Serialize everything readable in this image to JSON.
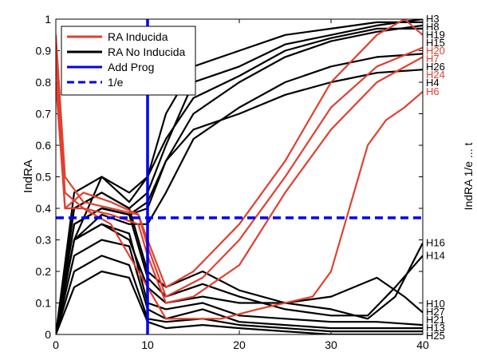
{
  "chart_data": {
    "type": "line",
    "title": "",
    "xlabel": "",
    "ylabel": "IndRA",
    "xlim": [
      0,
      40
    ],
    "ylim": [
      0,
      1
    ],
    "xticks": [
      0,
      10,
      20,
      30,
      40
    ],
    "yticks": [
      0,
      0.1,
      0.2,
      0.3,
      0.4,
      0.5,
      0.6,
      0.7,
      0.8,
      0.9,
      1
    ],
    "grid": false,
    "legend_position": "top-left",
    "colors": {
      "induced": "#e04030",
      "not_induced": "#000000",
      "prog": "#0000ee"
    },
    "legend": [
      {
        "label": "RA Inducida",
        "color": "#e04030",
        "style": "solid"
      },
      {
        "label": "RA No Inducida",
        "color": "#000000",
        "style": "solid"
      },
      {
        "label": "Add Prog",
        "color": "#0000ee",
        "style": "solid"
      },
      {
        "label": "1/e",
        "color": "#0000ee",
        "style": "dashed"
      }
    ],
    "reference_lines": [
      {
        "kind": "vertical",
        "x": 10,
        "color": "#0000ee",
        "style": "solid"
      },
      {
        "kind": "horizontal",
        "y": 0.37,
        "x_range": [
          0,
          40
        ],
        "color": "#0000ee",
        "style": "dashed"
      }
    ],
    "clipped_right_label": "IndRA 1/e ... t",
    "series": [
      {
        "name": "H3",
        "group": "not_induced",
        "points": [
          [
            0,
            0
          ],
          [
            2,
            0.4
          ],
          [
            5,
            0.45
          ],
          [
            8,
            0.4
          ],
          [
            10,
            0.45
          ],
          [
            12,
            0.6
          ],
          [
            15,
            0.8
          ],
          [
            20,
            0.85
          ],
          [
            25,
            0.92
          ],
          [
            30,
            0.95
          ],
          [
            35,
            0.98
          ],
          [
            40,
            1.0
          ]
        ]
      },
      {
        "name": "H8",
        "group": "not_induced",
        "points": [
          [
            0,
            0
          ],
          [
            2,
            0.45
          ],
          [
            5,
            0.5
          ],
          [
            8,
            0.42
          ],
          [
            10,
            0.5
          ],
          [
            12,
            0.7
          ],
          [
            15,
            0.85
          ],
          [
            20,
            0.9
          ],
          [
            25,
            0.95
          ],
          [
            30,
            0.97
          ],
          [
            35,
            0.99
          ],
          [
            40,
            0.99
          ]
        ]
      },
      {
        "name": "H19",
        "group": "not_induced",
        "points": [
          [
            0,
            0
          ],
          [
            2,
            0.35
          ],
          [
            5,
            0.4
          ],
          [
            8,
            0.38
          ],
          [
            10,
            0.42
          ],
          [
            12,
            0.55
          ],
          [
            15,
            0.7
          ],
          [
            20,
            0.8
          ],
          [
            25,
            0.88
          ],
          [
            30,
            0.93
          ],
          [
            35,
            0.96
          ],
          [
            40,
            0.98
          ]
        ]
      },
      {
        "name": "H15",
        "group": "not_induced",
        "points": [
          [
            0,
            0
          ],
          [
            2,
            0.3
          ],
          [
            5,
            0.5
          ],
          [
            8,
            0.45
          ],
          [
            10,
            0.5
          ],
          [
            12,
            0.62
          ],
          [
            15,
            0.75
          ],
          [
            20,
            0.82
          ],
          [
            25,
            0.9
          ],
          [
            30,
            0.94
          ],
          [
            35,
            0.97
          ],
          [
            40,
            0.97
          ]
        ]
      },
      {
        "name": "H20",
        "group": "induced",
        "points": [
          [
            0,
            0.95
          ],
          [
            1,
            0.5
          ],
          [
            3,
            0.42
          ],
          [
            6,
            0.4
          ],
          [
            9,
            0.38
          ],
          [
            10,
            0.3
          ],
          [
            12,
            0.15
          ],
          [
            15,
            0.2
          ],
          [
            20,
            0.35
          ],
          [
            25,
            0.55
          ],
          [
            30,
            0.8
          ],
          [
            35,
            0.95
          ],
          [
            38,
            1.0
          ],
          [
            40,
            0.95
          ]
        ]
      },
      {
        "name": "H7",
        "group": "induced",
        "points": [
          [
            0,
            0.88
          ],
          [
            1,
            0.4
          ],
          [
            3,
            0.45
          ],
          [
            6,
            0.42
          ],
          [
            9,
            0.38
          ],
          [
            10,
            0.28
          ],
          [
            12,
            0.12
          ],
          [
            16,
            0.18
          ],
          [
            20,
            0.3
          ],
          [
            25,
            0.5
          ],
          [
            30,
            0.72
          ],
          [
            35,
            0.85
          ],
          [
            40,
            0.91
          ]
        ]
      },
      {
        "name": "H26",
        "group": "not_induced",
        "points": [
          [
            0,
            0
          ],
          [
            2,
            0.3
          ],
          [
            5,
            0.38
          ],
          [
            8,
            0.35
          ],
          [
            10,
            0.35
          ],
          [
            12,
            0.45
          ],
          [
            15,
            0.62
          ],
          [
            20,
            0.72
          ],
          [
            25,
            0.8
          ],
          [
            30,
            0.85
          ],
          [
            35,
            0.88
          ],
          [
            40,
            0.89
          ]
        ]
      },
      {
        "name": "H24",
        "group": "induced",
        "points": [
          [
            0,
            0.8
          ],
          [
            1,
            0.4
          ],
          [
            3,
            0.4
          ],
          [
            6,
            0.38
          ],
          [
            9,
            0.35
          ],
          [
            10,
            0.25
          ],
          [
            12,
            0.1
          ],
          [
            15,
            0.12
          ],
          [
            20,
            0.22
          ],
          [
            25,
            0.45
          ],
          [
            30,
            0.65
          ],
          [
            35,
            0.8
          ],
          [
            40,
            0.88
          ]
        ]
      },
      {
        "name": "H4",
        "group": "not_induced",
        "points": [
          [
            0,
            0
          ],
          [
            2,
            0.35
          ],
          [
            5,
            0.4
          ],
          [
            8,
            0.38
          ],
          [
            10,
            0.4
          ],
          [
            12,
            0.55
          ],
          [
            15,
            0.65
          ],
          [
            20,
            0.7
          ],
          [
            25,
            0.76
          ],
          [
            30,
            0.8
          ],
          [
            35,
            0.83
          ],
          [
            40,
            0.84
          ]
        ]
      },
      {
        "name": "H6",
        "group": "induced",
        "points": [
          [
            0,
            0.9
          ],
          [
            1,
            0.45
          ],
          [
            3,
            0.4
          ],
          [
            6,
            0.35
          ],
          [
            9,
            0.2
          ],
          [
            10,
            0.15
          ],
          [
            12,
            0.05
          ],
          [
            18,
            0.05
          ],
          [
            22,
            0.08
          ],
          [
            28,
            0.12
          ],
          [
            30,
            0.2
          ],
          [
            32,
            0.4
          ],
          [
            34,
            0.6
          ],
          [
            36,
            0.68
          ],
          [
            38,
            0.72
          ],
          [
            40,
            0.77
          ]
        ]
      },
      {
        "name": "H16",
        "group": "not_induced",
        "points": [
          [
            0,
            0
          ],
          [
            2,
            0.4
          ],
          [
            5,
            0.45
          ],
          [
            8,
            0.4
          ],
          [
            10,
            0.2
          ],
          [
            12,
            0.15
          ],
          [
            16,
            0.2
          ],
          [
            20,
            0.14
          ],
          [
            25,
            0.1
          ],
          [
            30,
            0.08
          ],
          [
            34,
            0.05
          ],
          [
            37,
            0.12
          ],
          [
            40,
            0.29
          ]
        ]
      },
      {
        "name": "H14",
        "group": "not_induced",
        "points": [
          [
            0,
            0
          ],
          [
            2,
            0.35
          ],
          [
            5,
            0.4
          ],
          [
            8,
            0.38
          ],
          [
            10,
            0.18
          ],
          [
            12,
            0.12
          ],
          [
            16,
            0.16
          ],
          [
            20,
            0.12
          ],
          [
            25,
            0.08
          ],
          [
            30,
            0.06
          ],
          [
            34,
            0.06
          ],
          [
            37,
            0.15
          ],
          [
            40,
            0.25
          ]
        ]
      },
      {
        "name": "H10",
        "group": "not_induced",
        "points": [
          [
            0,
            0
          ],
          [
            2,
            0.3
          ],
          [
            5,
            0.35
          ],
          [
            8,
            0.3
          ],
          [
            10,
            0.15
          ],
          [
            12,
            0.1
          ],
          [
            16,
            0.12
          ],
          [
            20,
            0.1
          ],
          [
            25,
            0.1
          ],
          [
            30,
            0.12
          ],
          [
            35,
            0.18
          ],
          [
            38,
            0.12
          ],
          [
            40,
            0.07
          ]
        ]
      },
      {
        "name": "H27",
        "group": "not_induced",
        "points": [
          [
            0,
            0
          ],
          [
            2,
            0.3
          ],
          [
            5,
            0.35
          ],
          [
            8,
            0.32
          ],
          [
            10,
            0.1
          ],
          [
            12,
            0.08
          ],
          [
            16,
            0.1
          ],
          [
            20,
            0.06
          ],
          [
            25,
            0.05
          ],
          [
            30,
            0.04
          ],
          [
            35,
            0.04
          ],
          [
            40,
            0.03
          ]
        ]
      },
      {
        "name": "H21",
        "group": "not_induced",
        "points": [
          [
            0,
            0
          ],
          [
            2,
            0.25
          ],
          [
            5,
            0.3
          ],
          [
            8,
            0.28
          ],
          [
            10,
            0.08
          ],
          [
            12,
            0.05
          ],
          [
            16,
            0.08
          ],
          [
            20,
            0.04
          ],
          [
            25,
            0.03
          ],
          [
            30,
            0.02
          ],
          [
            35,
            0.02
          ],
          [
            40,
            0.02
          ]
        ]
      },
      {
        "name": "H13",
        "group": "not_induced",
        "points": [
          [
            0,
            0
          ],
          [
            2,
            0.2
          ],
          [
            5,
            0.25
          ],
          [
            8,
            0.22
          ],
          [
            10,
            0.05
          ],
          [
            12,
            0.04
          ],
          [
            16,
            0.05
          ],
          [
            20,
            0.03
          ],
          [
            25,
            0.02
          ],
          [
            30,
            0.01
          ],
          [
            35,
            0.01
          ],
          [
            40,
            0.01
          ]
        ]
      },
      {
        "name": "H25",
        "group": "not_induced",
        "points": [
          [
            0,
            0
          ],
          [
            2,
            0.15
          ],
          [
            5,
            0.2
          ],
          [
            8,
            0.18
          ],
          [
            10,
            0.04
          ],
          [
            12,
            0.02
          ],
          [
            16,
            0.03
          ],
          [
            20,
            0.02
          ],
          [
            25,
            0.01
          ],
          [
            30,
            0.0
          ],
          [
            35,
            0.0
          ],
          [
            40,
            0.0
          ]
        ]
      }
    ]
  }
}
